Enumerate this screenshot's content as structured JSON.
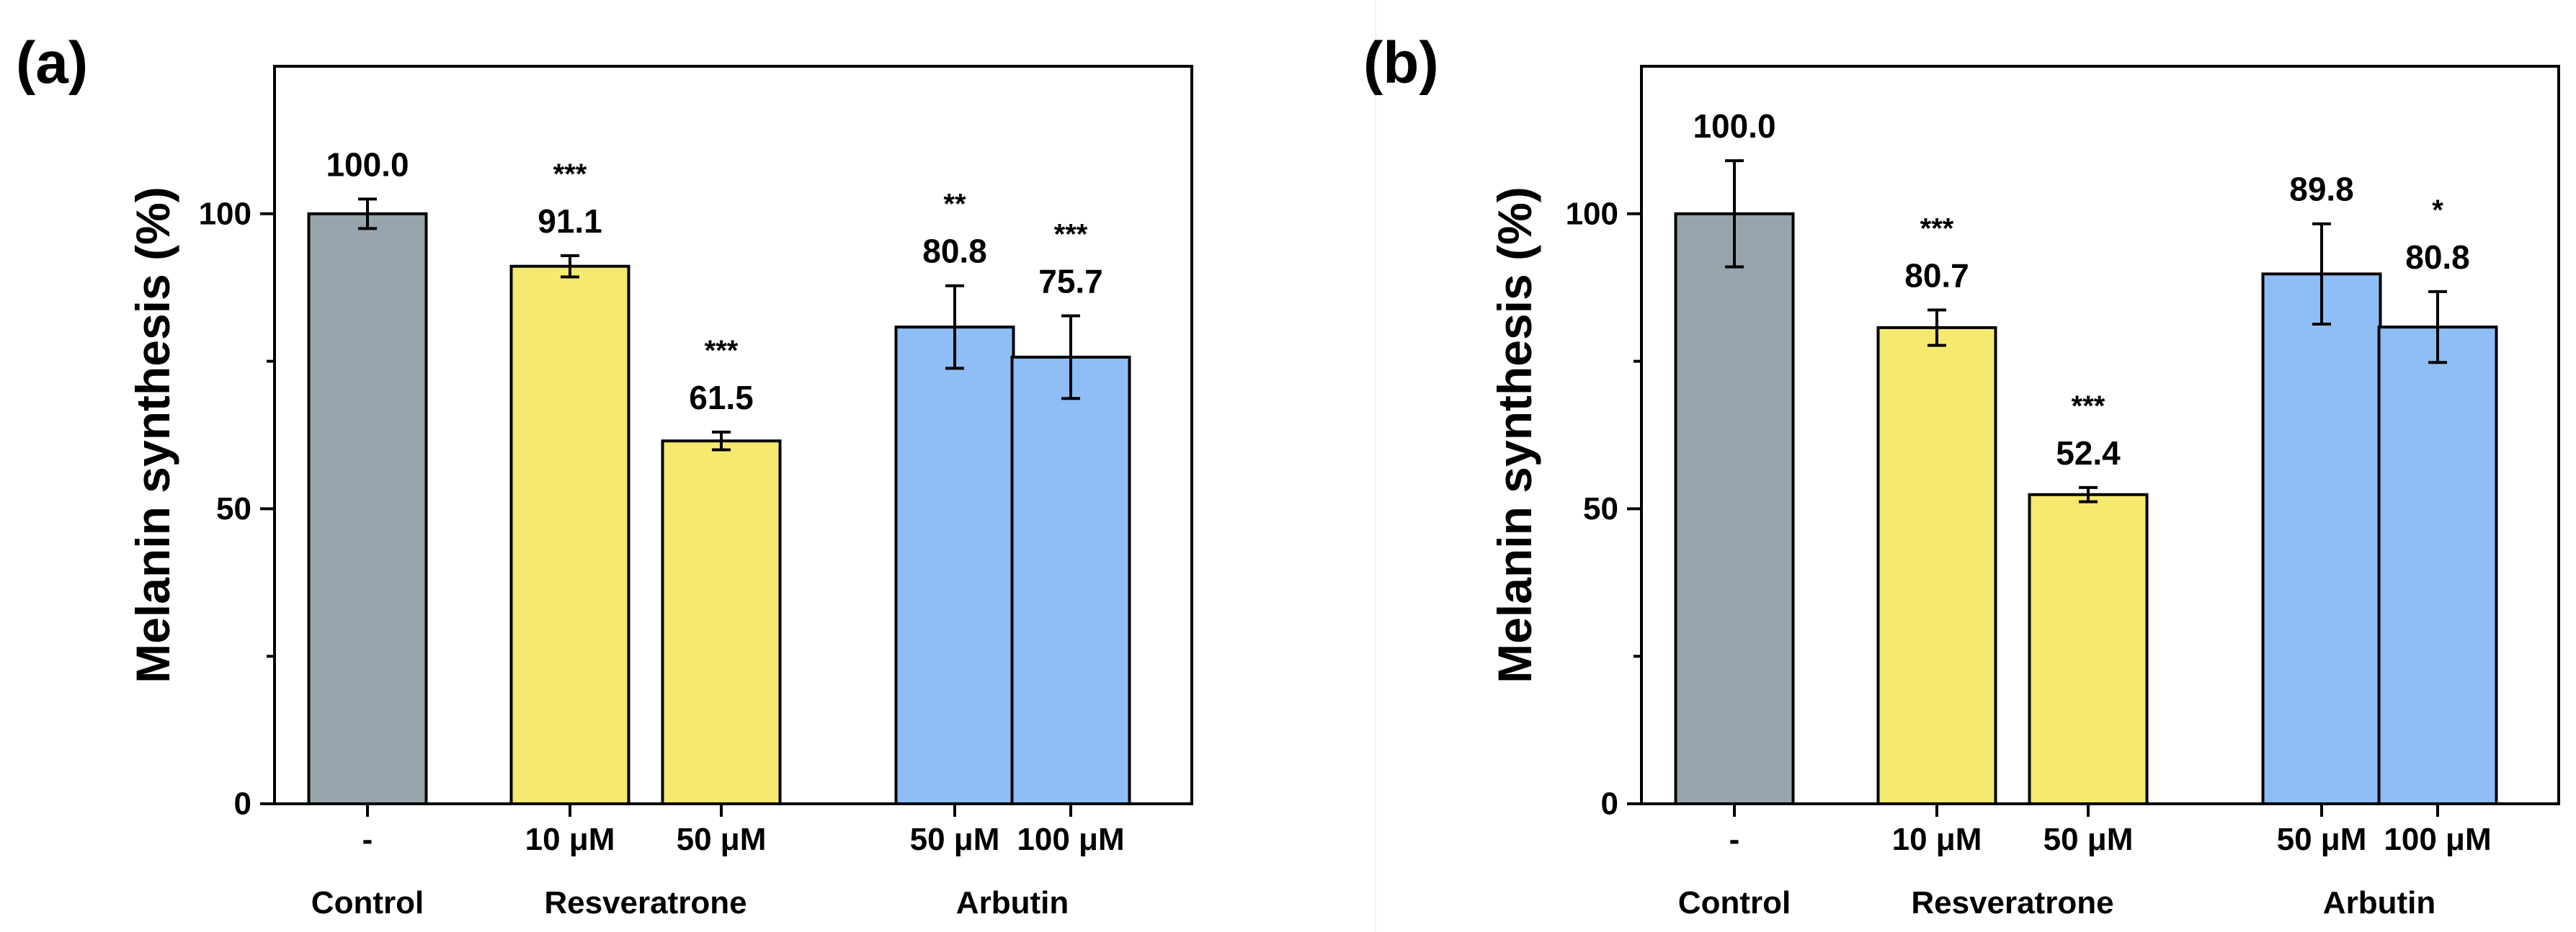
{
  "colors": {
    "control": "#97a4ab",
    "resveratrone": "#f5ea6f",
    "arbutin": "#8fbdf6",
    "stroke": "#000000",
    "background": "#ffffff"
  },
  "chart_data": [
    {
      "type": "bar",
      "panel_label": "(a)",
      "ylabel": "Melanin synthesis (%)",
      "ylim": [
        0,
        125
      ],
      "yticks": [
        0,
        50,
        100
      ],
      "ytick_labels": [
        "0",
        "50",
        "100"
      ],
      "categories": [
        "-",
        "10 μM",
        "50 μM",
        "50 μM",
        "100 μM"
      ],
      "groups": [
        {
          "name": "Control",
          "indices": [
            0
          ]
        },
        {
          "name": "Resveratrone",
          "indices": [
            1,
            2
          ]
        },
        {
          "name": "Arbutin",
          "indices": [
            3,
            4
          ]
        }
      ],
      "bar_colors": [
        "control",
        "resveratrone",
        "resveratrone",
        "arbutin",
        "arbutin"
      ],
      "values": [
        100.0,
        91.1,
        61.5,
        80.8,
        75.7
      ],
      "value_labels": [
        "100.0",
        "91.1",
        "61.5",
        "80.8",
        "75.7"
      ],
      "errors": [
        2.5,
        1.8,
        1.5,
        7.0,
        7.0
      ],
      "significance": [
        "",
        "***",
        "***",
        "**",
        "***"
      ]
    },
    {
      "type": "bar",
      "panel_label": "(b)",
      "ylabel": "Melanin synthesis (%)",
      "ylim": [
        0,
        125
      ],
      "yticks": [
        0,
        50,
        100
      ],
      "ytick_labels": [
        "0",
        "50",
        "100"
      ],
      "categories": [
        "-",
        "10 μM",
        "50 μM",
        "50 μM",
        "100 μM"
      ],
      "groups": [
        {
          "name": "Control",
          "indices": [
            0
          ]
        },
        {
          "name": "Resveratrone",
          "indices": [
            1,
            2
          ]
        },
        {
          "name": "Arbutin",
          "indices": [
            3,
            4
          ]
        }
      ],
      "bar_colors": [
        "control",
        "resveratrone",
        "resveratrone",
        "arbutin",
        "arbutin"
      ],
      "values": [
        100.0,
        80.7,
        52.4,
        89.8,
        80.8
      ],
      "value_labels": [
        "100.0",
        "80.7",
        "52.4",
        "89.8",
        "80.8"
      ],
      "errors": [
        9.0,
        3.0,
        1.2,
        8.5,
        6.0
      ],
      "significance": [
        "",
        "***",
        "***",
        "",
        "*"
      ]
    }
  ]
}
